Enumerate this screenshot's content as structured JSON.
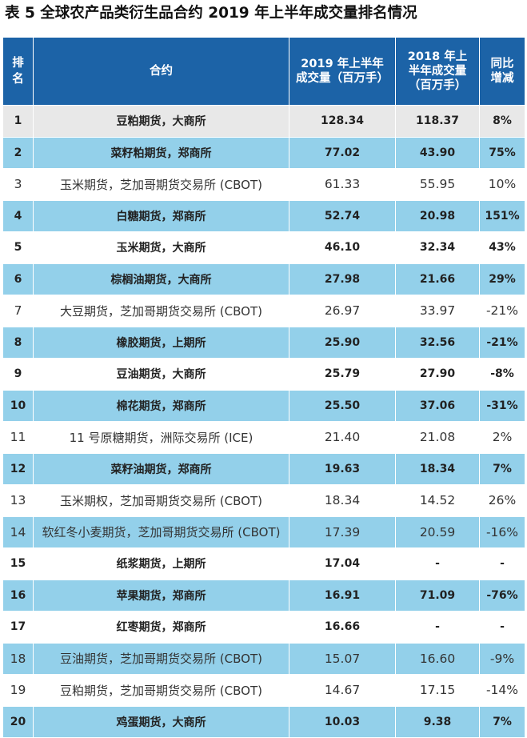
{
  "title": "表 5  全球农产品类衍生品合约 2019 年上半年成交量排名情况",
  "headers": {
    "rank_line1": "排",
    "rank_line2": "名",
    "contract": "合约",
    "vol2019_line1": "2019 年上半年",
    "vol2019_line2": "成交量（百万手）",
    "vol2018_line1": "2018 年上",
    "vol2018_line2": "半年成交量",
    "vol2018_line3": "（百万手）",
    "change_line1": "同比",
    "change_line2": "增减"
  },
  "rows": [
    {
      "rank": "1",
      "contract": "豆粕期货，大商所",
      "vol2019": "128.34",
      "vol2018": "118.37",
      "change": "8%"
    },
    {
      "rank": "2",
      "contract": "菜籽粕期货，郑商所",
      "vol2019": "77.02",
      "vol2018": "43.90",
      "change": "75%"
    },
    {
      "rank": "3",
      "contract": "玉米期货，芝加哥期货交易所 (CBOT)",
      "vol2019": "61.33",
      "vol2018": "55.95",
      "change": "10%"
    },
    {
      "rank": "4",
      "contract": "白糖期货，郑商所",
      "vol2019": "52.74",
      "vol2018": "20.98",
      "change": "151%"
    },
    {
      "rank": "5",
      "contract": "玉米期货，大商所",
      "vol2019": "46.10",
      "vol2018": "32.34",
      "change": "43%"
    },
    {
      "rank": "6",
      "contract": "棕榈油期货，大商所",
      "vol2019": "27.98",
      "vol2018": "21.66",
      "change": "29%"
    },
    {
      "rank": "7",
      "contract": "大豆期货，芝加哥期货交易所 (CBOT)",
      "vol2019": "26.97",
      "vol2018": "33.97",
      "change": "-21%"
    },
    {
      "rank": "8",
      "contract": "橡胶期货，上期所",
      "vol2019": "25.90",
      "vol2018": "32.56",
      "change": "-21%"
    },
    {
      "rank": "9",
      "contract": "豆油期货，大商所",
      "vol2019": "25.79",
      "vol2018": "27.90",
      "change": "-8%"
    },
    {
      "rank": "10",
      "contract": "棉花期货，郑商所",
      "vol2019": "25.50",
      "vol2018": "37.06",
      "change": "-31%"
    },
    {
      "rank": "11",
      "contract": "11 号原糖期货，洲际交易所 (ICE)",
      "vol2019": "21.40",
      "vol2018": "21.08",
      "change": "2%"
    },
    {
      "rank": "12",
      "contract": "菜籽油期货，郑商所",
      "vol2019": "19.63",
      "vol2018": "18.34",
      "change": "7%"
    },
    {
      "rank": "13",
      "contract": "玉米期权，芝加哥期货交易所 (CBOT)",
      "vol2019": "18.34",
      "vol2018": "14.52",
      "change": "26%"
    },
    {
      "rank": "14",
      "contract": "软红冬小麦期货，芝加哥期货交易所 (CBOT)",
      "vol2019": "17.39",
      "vol2018": "20.59",
      "change": "-16%"
    },
    {
      "rank": "15",
      "contract": "纸浆期货，上期所",
      "vol2019": "17.04",
      "vol2018": "-",
      "change": "-"
    },
    {
      "rank": "16",
      "contract": "苹果期货，郑商所",
      "vol2019": "16.91",
      "vol2018": "71.09",
      "change": "-76%"
    },
    {
      "rank": "17",
      "contract": "红枣期货，郑商所",
      "vol2019": "16.66",
      "vol2018": "-",
      "change": "-"
    },
    {
      "rank": "18",
      "contract": "豆油期货，芝加哥期货交易所 (CBOT)",
      "vol2019": "15.07",
      "vol2018": "16.60",
      "change": "-9%"
    },
    {
      "rank": "19",
      "contract": "豆粕期货，芝加哥期货交易所 (CBOT)",
      "vol2019": "14.67",
      "vol2018": "17.15",
      "change": "-14%"
    },
    {
      "rank": "20",
      "contract": "鸡蛋期货，大商所",
      "vol2019": "10.03",
      "vol2018": "9.38",
      "change": "7%"
    }
  ],
  "colors": {
    "header_bg": "#1c63a7",
    "highlight_row": "#93d0ea",
    "gray_row": "#e8e8e8",
    "white_row": "#ffffff"
  }
}
